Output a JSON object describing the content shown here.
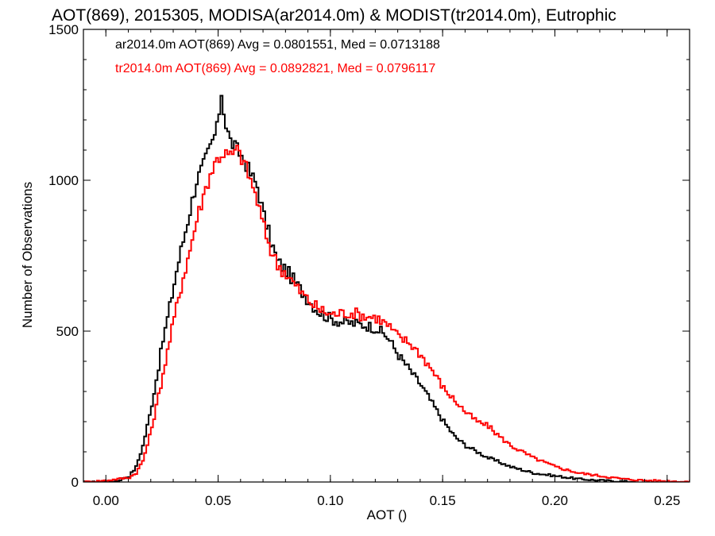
{
  "chart_data": {
    "type": "line",
    "title": "AOT(869), 2015305, MODISA(ar2014.0m) & MODIST(tr2014.0m), Eutrophic",
    "xlabel": "AOT ()",
    "ylabel": "Number of Observations",
    "xlim": [
      -0.01,
      0.26
    ],
    "ylim": [
      0,
      1500
    ],
    "x_ticks": [
      0.0,
      0.05,
      0.1,
      0.15,
      0.2,
      0.25
    ],
    "x_tick_labels": [
      "0.00",
      "0.05",
      "0.10",
      "0.15",
      "0.20",
      "0.25"
    ],
    "y_ticks": [
      0,
      500,
      1000,
      1500
    ],
    "y_tick_labels": [
      "0",
      "500",
      "1000",
      "1500"
    ],
    "grid": false,
    "legend_placement": "top-left",
    "series": [
      {
        "name": "ar2014.0m AOT(869) Avg = 0.0801551, Med = 0.0713188",
        "color": "#000000",
        "x": [
          -0.01,
          0.0,
          0.005,
          0.01,
          0.013,
          0.016,
          0.019,
          0.022,
          0.025,
          0.028,
          0.031,
          0.034,
          0.037,
          0.04,
          0.043,
          0.046,
          0.049,
          0.051,
          0.053,
          0.055,
          0.058,
          0.061,
          0.064,
          0.067,
          0.07,
          0.073,
          0.076,
          0.08,
          0.085,
          0.09,
          0.095,
          0.1,
          0.105,
          0.11,
          0.115,
          0.12,
          0.125,
          0.13,
          0.135,
          0.14,
          0.145,
          0.15,
          0.155,
          0.16,
          0.165,
          0.17,
          0.175,
          0.18,
          0.19,
          0.2,
          0.21,
          0.22,
          0.23,
          0.235
        ],
        "y": [
          0,
          0,
          5,
          20,
          50,
          120,
          220,
          340,
          470,
          580,
          700,
          800,
          900,
          1000,
          1050,
          1110,
          1170,
          1290,
          1180,
          1130,
          1100,
          1070,
          1020,
          980,
          880,
          800,
          730,
          700,
          650,
          600,
          560,
          540,
          530,
          525,
          520,
          510,
          480,
          420,
          370,
          320,
          260,
          200,
          150,
          120,
          100,
          80,
          65,
          50,
          30,
          20,
          10,
          5,
          2,
          0
        ]
      },
      {
        "name": "tr2014.0m AOT(869) Avg = 0.0892821, Med = 0.0796117",
        "color": "#ff0000",
        "x": [
          -0.01,
          0.0,
          0.005,
          0.01,
          0.013,
          0.016,
          0.019,
          0.022,
          0.025,
          0.028,
          0.031,
          0.034,
          0.037,
          0.04,
          0.043,
          0.046,
          0.049,
          0.052,
          0.055,
          0.058,
          0.061,
          0.064,
          0.067,
          0.07,
          0.073,
          0.076,
          0.08,
          0.085,
          0.09,
          0.095,
          0.1,
          0.105,
          0.11,
          0.115,
          0.12,
          0.125,
          0.13,
          0.135,
          0.14,
          0.145,
          0.15,
          0.155,
          0.16,
          0.165,
          0.17,
          0.175,
          0.18,
          0.19,
          0.2,
          0.21,
          0.22,
          0.23,
          0.24,
          0.25,
          0.26
        ],
        "y": [
          0,
          5,
          10,
          15,
          30,
          70,
          150,
          250,
          360,
          470,
          580,
          680,
          770,
          870,
          950,
          1020,
          1070,
          1090,
          1080,
          1100,
          1060,
          1000,
          930,
          840,
          770,
          720,
          690,
          640,
          600,
          570,
          555,
          560,
          560,
          550,
          545,
          520,
          480,
          460,
          420,
          370,
          310,
          270,
          230,
          200,
          185,
          150,
          120,
          80,
          50,
          30,
          20,
          10,
          5,
          3,
          1
        ]
      }
    ]
  }
}
